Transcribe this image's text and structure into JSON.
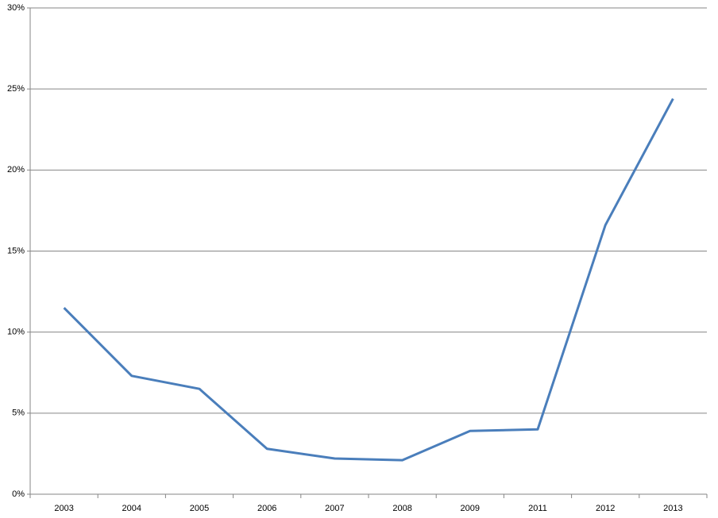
{
  "chart_data": {
    "type": "line",
    "categories": [
      "2003",
      "2004",
      "2005",
      "2006",
      "2007",
      "2008",
      "2009",
      "2011",
      "2012",
      "2013"
    ],
    "series": [
      {
        "color": "#4a7ebb",
        "values": [
          11.5,
          7.3,
          6.5,
          2.8,
          2.2,
          2.1,
          3.9,
          4.0,
          16.6,
          24.4
        ]
      }
    ],
    "ylim": [
      0,
      30
    ],
    "yticks": [
      {
        "value": 0,
        "label": "0%"
      },
      {
        "value": 5,
        "label": "5%"
      },
      {
        "value": 10,
        "label": "10%"
      },
      {
        "value": 15,
        "label": "15%"
      },
      {
        "value": 20,
        "label": "20%"
      },
      {
        "value": 25,
        "label": "25%"
      },
      {
        "value": 30,
        "label": "30%"
      }
    ],
    "grid": true
  }
}
